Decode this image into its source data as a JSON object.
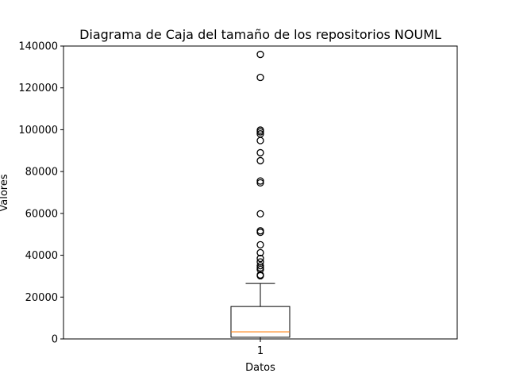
{
  "chart_data": {
    "type": "box",
    "title": "Diagrama de Caja del tamaño de los repositorios NOUML",
    "xlabel": "Datos",
    "ylabel": "Valores",
    "categories": [
      "1"
    ],
    "ylim": [
      0,
      140000
    ],
    "yticks": [
      0,
      20000,
      40000,
      60000,
      80000,
      100000,
      120000,
      140000
    ],
    "ytick_labels": [
      "0",
      "20000",
      "40000",
      "60000",
      "80000",
      "100000",
      "120000",
      "140000"
    ],
    "grid": false,
    "box": {
      "whisker_low": 0,
      "q1": 800,
      "median": 3400,
      "q3": 15500,
      "whisker_high": 26500
    },
    "outliers": [
      30200,
      30600,
      33200,
      34000,
      35000,
      36800,
      38500,
      41200,
      45000,
      51000,
      51700,
      59800,
      74600,
      75500,
      85200,
      89000,
      94800,
      98000,
      99000,
      99800,
      125000,
      136000
    ],
    "colors": {
      "box": "#000000",
      "median": "#ff7f0e",
      "outlier": "#000000"
    }
  }
}
